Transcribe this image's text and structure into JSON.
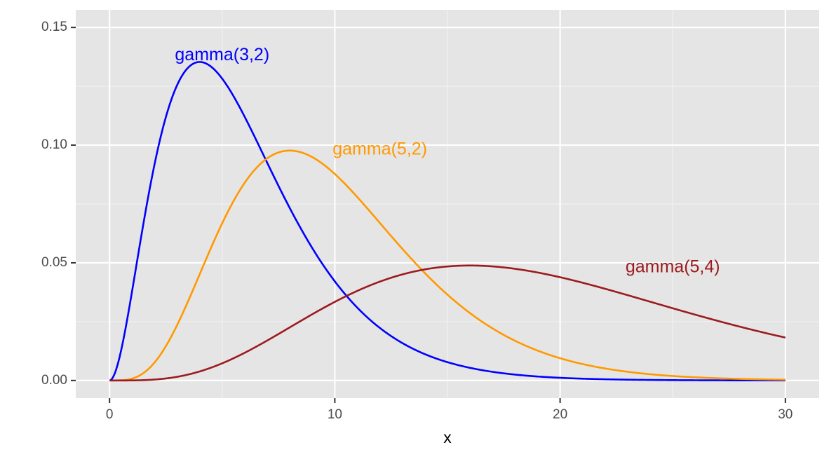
{
  "chart_data": {
    "type": "line",
    "title": "",
    "xlabel": "x",
    "ylabel": "",
    "xlim": [
      -1.5,
      31.5
    ],
    "ylim": [
      -0.0075,
      0.1575
    ],
    "x_ticks": [
      0,
      10,
      20,
      30
    ],
    "x_tick_labels": [
      "0",
      "10",
      "20",
      "30"
    ],
    "y_ticks": [
      0.0,
      0.05,
      0.1,
      0.15
    ],
    "y_tick_labels": [
      "0.00",
      "0.05",
      "0.10",
      "0.15"
    ],
    "grid": true,
    "panel_color": "#e5e5e5",
    "series": [
      {
        "name": "gamma(3,2)",
        "shape": 3,
        "scale": 2,
        "color": "#0000ff",
        "x_range": [
          0,
          30
        ],
        "label": {
          "text": "gamma(3,2)",
          "x": 5,
          "y": 0.138
        }
      },
      {
        "name": "gamma(5,2)",
        "shape": 5,
        "scale": 2,
        "color": "#ff9900",
        "x_range": [
          0,
          30
        ],
        "label": {
          "text": "gamma(5,2)",
          "x": 12,
          "y": 0.098
        }
      },
      {
        "name": "gamma(5,4)",
        "shape": 5,
        "scale": 4,
        "color": "#9c1b1f",
        "x_range": [
          0,
          30
        ],
        "label": {
          "text": "gamma(5,4)",
          "x": 25,
          "y": 0.048
        }
      }
    ]
  }
}
